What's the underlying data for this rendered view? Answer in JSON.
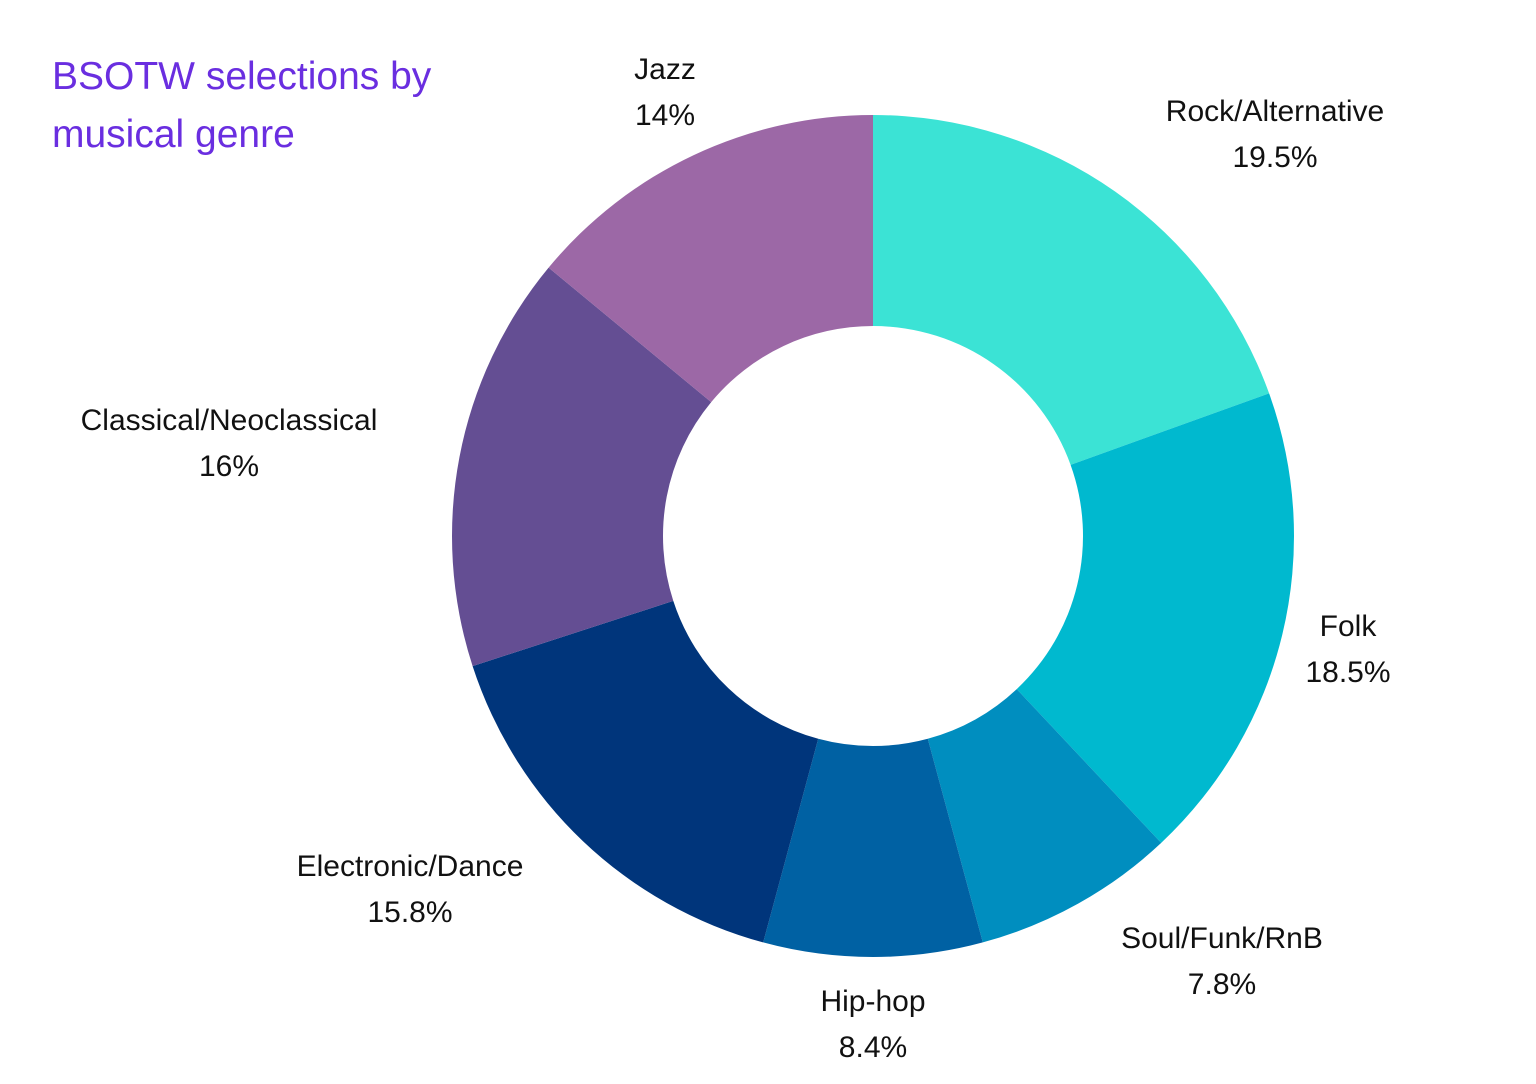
{
  "chart_data": {
    "type": "pie",
    "variant": "donut",
    "title_lines": [
      "BSOTW selections by",
      "musical genre"
    ],
    "start": "top",
    "direction": "clockwise",
    "categories": [
      "Rock/Alternative",
      "Folk",
      "Soul/Funk/RnB",
      "Hip-hop",
      "Electronic/Dance",
      "Classical/Neoclassical",
      "Jazz"
    ],
    "values": [
      19.5,
      18.5,
      7.8,
      8.4,
      15.8,
      16,
      14
    ],
    "value_labels": [
      "19.5%",
      "18.5%",
      "7.8%",
      "8.4%",
      "15.8%",
      "16%",
      "14%"
    ],
    "colors": [
      "#3be3d5",
      "#00b9cf",
      "#008ebf",
      "#0061a3",
      "#00357b",
      "#644e93",
      "#9c68a6"
    ],
    "legend": "none",
    "grid": false
  }
}
